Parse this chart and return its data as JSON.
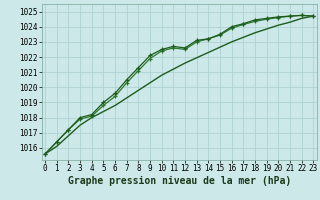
{
  "x": [
    0,
    1,
    2,
    3,
    4,
    5,
    6,
    7,
    8,
    9,
    10,
    11,
    12,
    13,
    14,
    15,
    16,
    17,
    18,
    19,
    20,
    21,
    22,
    23
  ],
  "line1": [
    1015.6,
    1016.4,
    1017.2,
    1018.0,
    1018.2,
    1019.0,
    1019.6,
    1020.5,
    1021.3,
    1022.1,
    1022.5,
    1022.7,
    1022.6,
    1023.1,
    1023.2,
    1023.5,
    1024.0,
    1024.2,
    1024.45,
    1024.55,
    1024.65,
    1024.7,
    1024.75,
    1024.7
  ],
  "line2": [
    1015.6,
    1016.4,
    1017.2,
    1017.9,
    1018.1,
    1018.8,
    1019.4,
    1020.3,
    1021.1,
    1021.9,
    1022.4,
    1022.6,
    1022.5,
    1023.0,
    1023.2,
    1023.45,
    1023.9,
    1024.15,
    1024.35,
    1024.5,
    1024.6,
    1024.7,
    1024.75,
    1024.7
  ],
  "line3": [
    1015.6,
    1016.1,
    1016.8,
    1017.5,
    1018.0,
    1018.4,
    1018.8,
    1019.3,
    1019.8,
    1020.3,
    1020.8,
    1021.2,
    1021.6,
    1021.95,
    1022.3,
    1022.65,
    1023.0,
    1023.3,
    1023.6,
    1023.85,
    1024.1,
    1024.3,
    1024.55,
    1024.7
  ],
  "ylim_min": 1015.2,
  "ylim_max": 1025.5,
  "yticks": [
    1016,
    1017,
    1018,
    1019,
    1020,
    1021,
    1022,
    1023,
    1024,
    1025
  ],
  "line_color_dark": "#1e5c1e",
  "line_color_mid": "#2d7a2d",
  "bg_color": "#cce8e8",
  "grid_color": "#aacece",
  "xlabel": "Graphe pression niveau de la mer (hPa)",
  "xlabel_fontsize": 7.0,
  "tick_fontsize": 5.5,
  "figsize": [
    3.2,
    2.0
  ],
  "dpi": 100
}
